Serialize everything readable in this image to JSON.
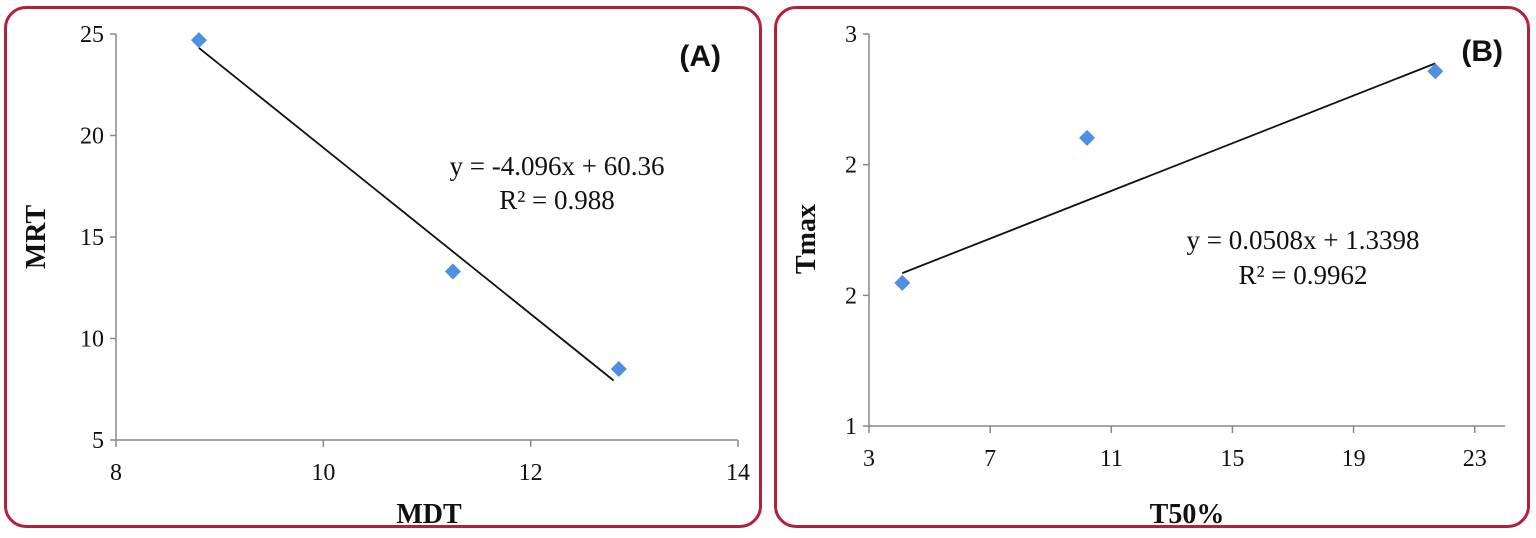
{
  "chart_data": [
    {
      "type": "scatter",
      "panel_label": "(A)",
      "xlabel": "MDT",
      "ylabel": "MRT",
      "xlim": [
        8,
        14
      ],
      "ylim": [
        5,
        25
      ],
      "x_ticks": [
        "8",
        "10",
        "12",
        "14"
      ],
      "y_ticks": [
        "5",
        "10",
        "15",
        "20",
        "25"
      ],
      "x": [
        8.8,
        11.25,
        12.85
      ],
      "y": [
        24.7,
        13.3,
        8.5
      ],
      "trendline": {
        "slope": -4.096,
        "intercept": 60.36,
        "x_range": [
          8.8,
          12.8
        ]
      },
      "equation": "y = -4.096x + 60.36",
      "r_squared": "R² = 0.988",
      "marker_color": "#4f8fe0"
    },
    {
      "type": "scatter",
      "panel_label": "(B)",
      "xlabel": "T50%",
      "ylabel": "Tmax",
      "xlim": [
        3,
        24
      ],
      "ylim": [
        1,
        3
      ],
      "x_ticks": [
        "3",
        "7",
        "11",
        "15",
        "19",
        "23"
      ],
      "y_ticks": [
        "1",
        "2",
        "2",
        "3"
      ],
      "x": [
        4.1,
        10.2,
        21.7
      ],
      "y": [
        1.73,
        2.47,
        2.81
      ],
      "trendline": {
        "slope": 0.0508,
        "intercept": 1.3398,
        "x_range": [
          4.1,
          21.7
        ]
      },
      "equation": "y = 0.0508x + 1.3398",
      "r_squared": "R² = 0.9962",
      "marker_color": "#4f8fe0"
    }
  ],
  "colors": {
    "frame": "#b3203a",
    "marker": "#4f8fe0",
    "axis": "#888888"
  }
}
